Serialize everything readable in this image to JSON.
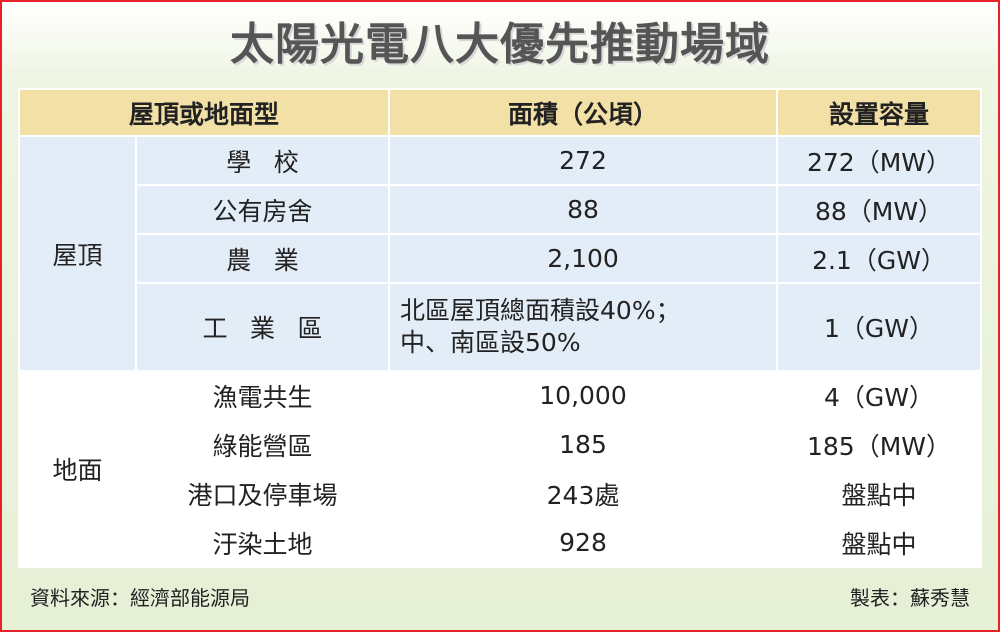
{
  "header": {
    "title": "太陽光電八大優先推動場域"
  },
  "table": {
    "columns": [
      "屋頂或地面型",
      "面積（公頃）",
      "設置容量"
    ],
    "groups": [
      {
        "label": "屋頂",
        "rows": [
          {
            "item": "學校",
            "area": [
              "272"
            ],
            "capacity": "272（MW）"
          },
          {
            "item": "公有房舍",
            "area": [
              "88"
            ],
            "capacity": "88（MW）"
          },
          {
            "item": "農業",
            "area": [
              "2,100"
            ],
            "capacity": "2.1（GW）"
          },
          {
            "item": "工業區",
            "area": [
              "北區屋頂總面積設40%；",
              "中、南區設50%"
            ],
            "capacity": "1（GW）"
          }
        ]
      },
      {
        "label": "地面",
        "rows": [
          {
            "item": "漁電共生",
            "area": [
              "10,000"
            ],
            "capacity": "4（GW）"
          },
          {
            "item": "綠能營區",
            "area": [
              "185"
            ],
            "capacity": "185（MW）"
          },
          {
            "item": "港口及停車場",
            "area": [
              "243處"
            ],
            "capacity": "盤點中"
          },
          {
            "item": "汙染土地",
            "area": [
              "928"
            ],
            "capacity": "盤點中"
          }
        ]
      }
    ]
  },
  "footer": {
    "source": "資料來源：經濟部能源局",
    "credit": "製表：蘇秀慧"
  }
}
